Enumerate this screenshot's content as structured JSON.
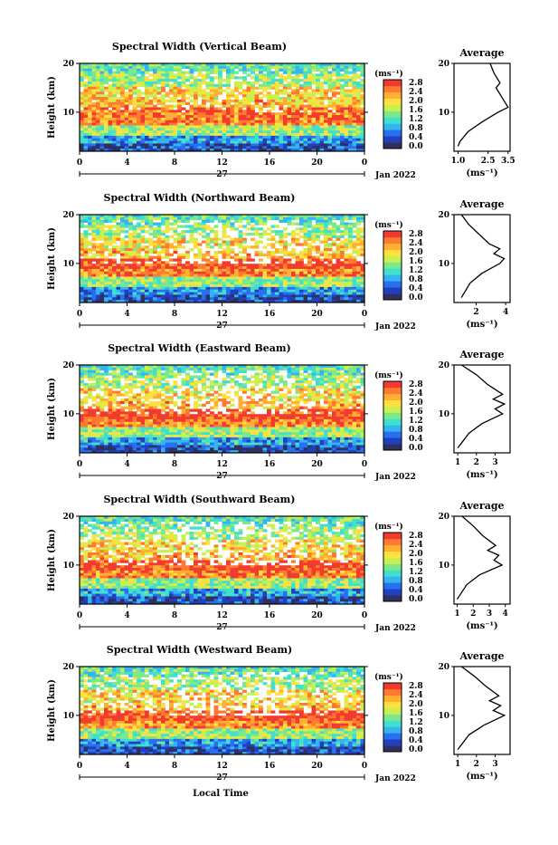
{
  "colorbar": {
    "unit_label": "(ms⁻¹)",
    "ticks": [
      "2.8",
      "2.4",
      "2.0",
      "1.6",
      "1.2",
      "0.8",
      "0.4",
      "0.0"
    ],
    "colors": [
      "#303060",
      "#2040c0",
      "#2a6ff0",
      "#34b5f0",
      "#40e0d0",
      "#7ce88a",
      "#c8f050",
      "#ffe040",
      "#ffb030",
      "#ff7a30",
      "#f23b2e"
    ]
  },
  "x_ticks": [
    "0",
    "4",
    "8",
    "12",
    "16",
    "20",
    "0"
  ],
  "date_day": "27",
  "date_month": "Jan 2022",
  "xlabel": "Local Time",
  "ylabel": "Height (km)",
  "y_ticks": [
    "20",
    "10"
  ],
  "avg_title": "Average",
  "avg_unit": "(ms⁻¹)",
  "panels": [
    {
      "title": "Spectral Width (Vertical Beam)",
      "avg_x_ticks": [
        "1.0",
        "2.5",
        "3.5"
      ]
    },
    {
      "title": "Spectral Width (Northward Beam)",
      "avg_x_ticks": [
        "2",
        "4"
      ]
    },
    {
      "title": "Spectral Width (Eastward Beam)",
      "avg_x_ticks": [
        "1",
        "2",
        "3"
      ]
    },
    {
      "title": "Spectral Width (Southward Beam)",
      "avg_x_ticks": [
        "1",
        "2",
        "3",
        "4"
      ]
    },
    {
      "title": "Spectral Width (Westward Beam)",
      "avg_x_ticks": [
        "1",
        "2",
        "3"
      ]
    }
  ],
  "chart_data": [
    {
      "type": "heatmap",
      "title": "Spectral Width (Vertical Beam)",
      "xlabel": "",
      "ylabel": "Height (km)",
      "x_range": [
        0,
        24
      ],
      "y_range": [
        2,
        20
      ],
      "z_range": [
        0.0,
        2.8
      ],
      "z_unit": "ms-1"
    },
    {
      "type": "line",
      "title": "Average",
      "xlabel": "(ms-1)",
      "ylabel": "",
      "x_range": [
        0.8,
        3.6
      ],
      "y_range": [
        2,
        20
      ],
      "series": [
        {
          "x": [
            1.0,
            1.1,
            1.5,
            2.2,
            3.0,
            3.5,
            3.2,
            2.9,
            3.1,
            2.8,
            2.6
          ],
          "y": [
            3,
            4,
            6,
            8,
            10,
            11,
            13,
            15,
            16,
            18,
            20
          ]
        }
      ]
    },
    {
      "type": "heatmap",
      "title": "Spectral Width (Northward Beam)",
      "xlabel": "",
      "ylabel": "Height (km)",
      "x_range": [
        0,
        24
      ],
      "y_range": [
        2,
        20
      ],
      "z_range": [
        0.0,
        2.8
      ],
      "z_unit": "ms-1"
    },
    {
      "type": "line",
      "title": "Average",
      "xlabel": "(ms-1)",
      "ylabel": "",
      "x_range": [
        0.5,
        4.3
      ],
      "y_range": [
        2,
        20
      ],
      "series": [
        {
          "x": [
            1.0,
            1.2,
            1.6,
            2.4,
            3.6,
            3.9,
            3.2,
            3.6,
            2.9,
            2.2,
            1.5,
            1.0
          ],
          "y": [
            3,
            4,
            6,
            8,
            10,
            11,
            12,
            13,
            14,
            16,
            18,
            20
          ]
        }
      ]
    },
    {
      "type": "heatmap",
      "title": "Spectral Width (Eastward Beam)",
      "xlabel": "",
      "ylabel": "Height (km)",
      "x_range": [
        0,
        24
      ],
      "y_range": [
        2,
        20
      ],
      "z_range": [
        0.0,
        2.8
      ],
      "z_unit": "ms-1"
    },
    {
      "type": "line",
      "title": "Average",
      "xlabel": "(ms-1)",
      "ylabel": "",
      "x_range": [
        0.8,
        3.8
      ],
      "y_range": [
        2,
        20
      ],
      "series": [
        {
          "x": [
            1.0,
            1.2,
            1.6,
            2.3,
            3.4,
            3.0,
            3.5,
            2.9,
            3.4,
            2.6,
            2.0,
            1.2
          ],
          "y": [
            3,
            4,
            6,
            8,
            10,
            11,
            12,
            13,
            14,
            16,
            18,
            20
          ]
        }
      ]
    },
    {
      "type": "heatmap",
      "title": "Spectral Width (Southward Beam)",
      "xlabel": "",
      "ylabel": "Height (km)",
      "x_range": [
        0,
        24
      ],
      "y_range": [
        2,
        20
      ],
      "z_range": [
        0.0,
        2.8
      ],
      "z_unit": "ms-1"
    },
    {
      "type": "line",
      "title": "Average",
      "xlabel": "(ms-1)",
      "ylabel": "",
      "x_range": [
        0.8,
        4.3
      ],
      "y_range": [
        2,
        20
      ],
      "series": [
        {
          "x": [
            1.0,
            1.2,
            1.6,
            2.4,
            3.8,
            3.3,
            3.6,
            2.9,
            3.4,
            2.6,
            2.0,
            1.3
          ],
          "y": [
            3,
            4,
            6,
            8,
            10,
            11,
            12,
            13,
            14,
            16,
            18,
            20
          ]
        }
      ]
    },
    {
      "type": "heatmap",
      "title": "Spectral Width (Westward Beam)",
      "xlabel": "Local Time",
      "ylabel": "Height (km)",
      "x_range": [
        0,
        24
      ],
      "y_range": [
        2,
        20
      ],
      "z_range": [
        0.0,
        2.8
      ],
      "z_unit": "ms-1"
    },
    {
      "type": "line",
      "title": "Average",
      "xlabel": "(ms-1)",
      "ylabel": "",
      "x_range": [
        0.8,
        3.8
      ],
      "y_range": [
        2,
        20
      ],
      "series": [
        {
          "x": [
            1.0,
            1.2,
            1.6,
            2.4,
            3.5,
            2.9,
            3.3,
            2.7,
            3.2,
            2.5,
            1.9,
            1.2
          ],
          "y": [
            3,
            4,
            6,
            8,
            10,
            11,
            12,
            13,
            14,
            16,
            18,
            20
          ]
        }
      ]
    }
  ]
}
